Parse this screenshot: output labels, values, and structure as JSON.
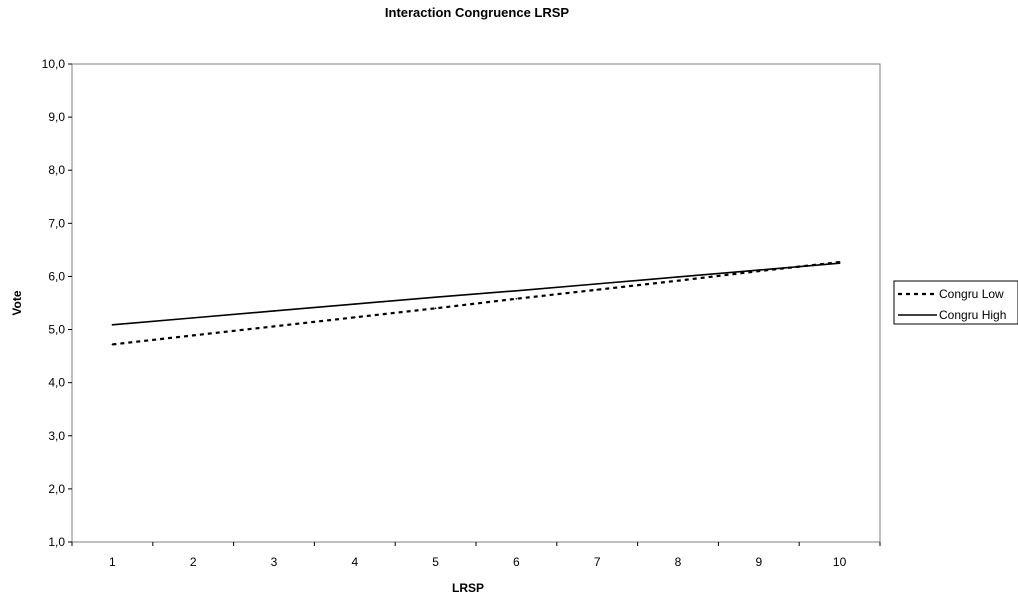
{
  "chart_data": {
    "type": "line",
    "title": "Interaction Congruence LRSP",
    "xlabel": "LRSP",
    "ylabel": "Vote",
    "x": [
      1,
      2,
      3,
      4,
      5,
      6,
      7,
      8,
      9,
      10
    ],
    "x_tick_labels": [
      "1",
      "2",
      "3",
      "4",
      "5",
      "6",
      "7",
      "8",
      "9",
      "10"
    ],
    "y_tick_labels": [
      "1,0",
      "2,0",
      "3,0",
      "4,0",
      "5,0",
      "6,0",
      "7,0",
      "8,0",
      "9,0",
      "10,0"
    ],
    "ylim": [
      1,
      10
    ],
    "grid": false,
    "legend_position": "right",
    "series": [
      {
        "name": "Congru Low",
        "style": "dashed",
        "color": "#000000",
        "values": [
          4.72,
          4.89,
          5.06,
          5.23,
          5.4,
          5.58,
          5.75,
          5.92,
          6.1,
          6.27
        ]
      },
      {
        "name": "Congru High",
        "style": "solid",
        "color": "#000000",
        "values": [
          5.09,
          5.22,
          5.35,
          5.48,
          5.61,
          5.73,
          5.86,
          5.99,
          6.12,
          6.25
        ]
      }
    ]
  }
}
